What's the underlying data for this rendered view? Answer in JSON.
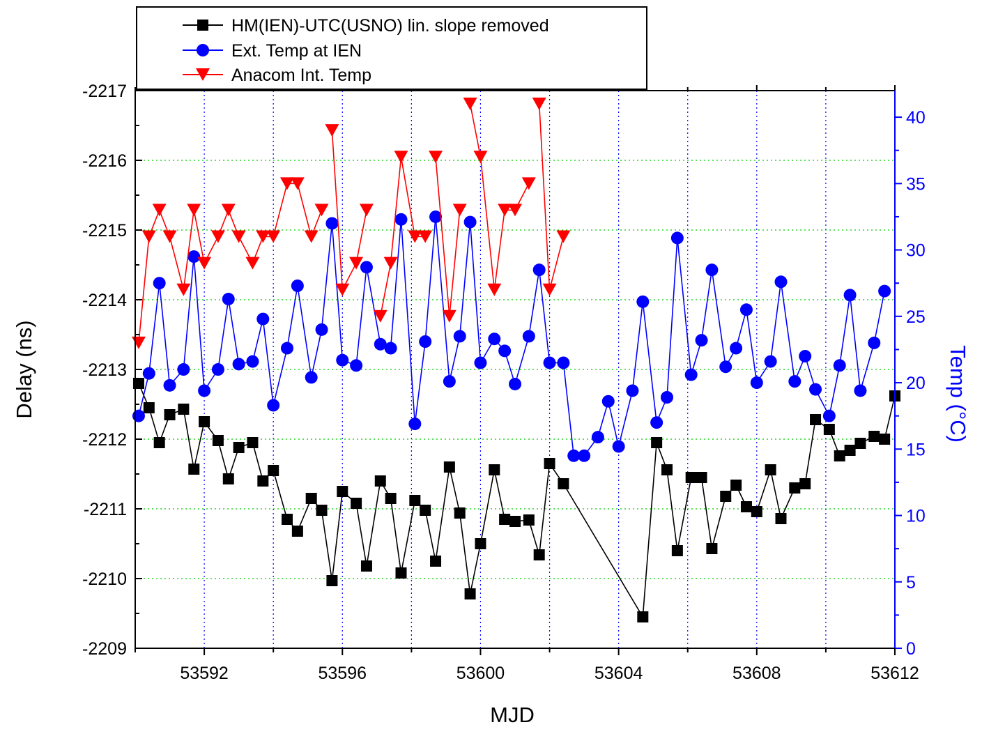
{
  "chart_data": {
    "type": "line",
    "xlabel": "MJD",
    "ylabel": "Delay (ns)",
    "y2label": "Temp (°C)",
    "xlim": [
      53590,
      53612
    ],
    "ylim": [
      -2209,
      -2217
    ],
    "y2lim": [
      0,
      42
    ],
    "x_ticks": [
      53592,
      53596,
      53600,
      53604,
      53608,
      53612
    ],
    "y_ticks": [
      -2217,
      -2216,
      -2215,
      -2214,
      -2213,
      -2212,
      -2211,
      -2210,
      -2209
    ],
    "y2_ticks": [
      0,
      5,
      10,
      15,
      20,
      25,
      30,
      35,
      40
    ],
    "grid": {
      "vertical_dotted_blue_at": [
        53592,
        53594,
        53596,
        53598,
        53600,
        53602,
        53604,
        53606,
        53608,
        53610
      ],
      "horizontal_dotted_green_at": [
        -2216,
        -2215,
        -2214,
        -2213,
        -2212,
        -2211,
        -2210
      ]
    },
    "legend_position": "top-left",
    "series": [
      {
        "name": "HM(IEN)-UTC(USNO) lin. slope removed",
        "axis": "left",
        "color": "#000000",
        "marker": "square",
        "points": [
          [
            53590.1,
            -2212.8
          ],
          [
            53590.4,
            -2212.45
          ],
          [
            53590.7,
            -2211.95
          ],
          [
            53591.0,
            -2212.35
          ],
          [
            53591.4,
            -2212.43
          ],
          [
            53591.7,
            -2211.57
          ],
          [
            53592.0,
            -2212.25
          ],
          [
            53592.4,
            -2211.98
          ],
          [
            53592.7,
            -2211.43
          ],
          [
            53593.0,
            -2211.88
          ],
          [
            53593.4,
            -2211.95
          ],
          [
            53593.7,
            -2211.4
          ],
          [
            53594.0,
            -2211.55
          ],
          [
            53594.4,
            -2210.85
          ],
          [
            53594.7,
            -2210.68
          ],
          [
            53595.1,
            -2211.15
          ],
          [
            53595.4,
            -2210.98
          ],
          [
            53595.7,
            -2209.97
          ],
          [
            53596.0,
            -2211.25
          ],
          [
            53596.4,
            -2211.08
          ],
          [
            53596.7,
            -2210.18
          ],
          [
            53597.1,
            -2211.4
          ],
          [
            53597.4,
            -2211.15
          ],
          [
            53597.7,
            -2210.08
          ],
          [
            53598.1,
            -2211.12
          ],
          [
            53598.4,
            -2210.98
          ],
          [
            53598.7,
            -2210.25
          ],
          [
            53599.1,
            -2211.6
          ],
          [
            53599.4,
            -2210.94
          ],
          [
            53599.7,
            -2209.78
          ],
          [
            53600.0,
            -2210.5
          ],
          [
            53600.4,
            -2211.56
          ],
          [
            53600.7,
            -2210.85
          ],
          [
            53601.0,
            -2210.82
          ],
          [
            53601.4,
            -2210.84
          ],
          [
            53601.7,
            -2210.34
          ],
          [
            53602.0,
            -2211.65
          ],
          [
            53602.4,
            -2211.36
          ],
          [
            53604.7,
            -2209.45
          ],
          [
            53605.1,
            -2211.95
          ],
          [
            53605.4,
            -2211.56
          ],
          [
            53605.7,
            -2210.4
          ],
          [
            53606.1,
            -2211.45
          ],
          [
            53606.4,
            -2211.45
          ],
          [
            53606.7,
            -2210.43
          ],
          [
            53607.1,
            -2211.18
          ],
          [
            53607.4,
            -2211.34
          ],
          [
            53607.7,
            -2211.03
          ],
          [
            53608.0,
            -2210.96
          ],
          [
            53608.4,
            -2211.56
          ],
          [
            53608.7,
            -2210.86
          ],
          [
            53609.1,
            -2211.3
          ],
          [
            53609.4,
            -2211.36
          ],
          [
            53609.7,
            -2212.28
          ],
          [
            53610.1,
            -2212.14
          ],
          [
            53610.4,
            -2211.76
          ],
          [
            53610.7,
            -2211.84
          ],
          [
            53611.0,
            -2211.94
          ],
          [
            53611.4,
            -2212.04
          ],
          [
            53611.7,
            -2212.0
          ],
          [
            53612.0,
            -2212.62
          ]
        ]
      },
      {
        "name": "Ext. Temp at IEN",
        "axis": "right",
        "color": "#0000ff",
        "marker": "circle",
        "points": [
          [
            53590.1,
            17.5
          ],
          [
            53590.4,
            20.7
          ],
          [
            53590.7,
            27.5
          ],
          [
            53591.0,
            19.8
          ],
          [
            53591.4,
            21.0
          ],
          [
            53591.7,
            29.5
          ],
          [
            53592.0,
            19.4
          ],
          [
            53592.4,
            21.0
          ],
          [
            53592.7,
            26.3
          ],
          [
            53593.0,
            21.4
          ],
          [
            53593.4,
            21.6
          ],
          [
            53593.7,
            24.8
          ],
          [
            53594.0,
            18.3
          ],
          [
            53594.4,
            22.6
          ],
          [
            53594.7,
            27.3
          ],
          [
            53595.1,
            20.4
          ],
          [
            53595.4,
            24.0
          ],
          [
            53595.7,
            32.0
          ],
          [
            53596.0,
            21.7
          ],
          [
            53596.4,
            21.3
          ],
          [
            53596.7,
            28.7
          ],
          [
            53597.1,
            22.9
          ],
          [
            53597.4,
            22.6
          ],
          [
            53597.7,
            32.3
          ],
          [
            53598.1,
            16.9
          ],
          [
            53598.4,
            23.1
          ],
          [
            53598.7,
            32.5
          ],
          [
            53599.1,
            20.1
          ],
          [
            53599.4,
            23.5
          ],
          [
            53599.7,
            32.1
          ],
          [
            53600.0,
            21.5
          ],
          [
            53600.4,
            23.3
          ],
          [
            53600.7,
            22.4
          ],
          [
            53601.0,
            19.9
          ],
          [
            53601.4,
            23.5
          ],
          [
            53601.7,
            28.5
          ],
          [
            53602.0,
            21.5
          ],
          [
            53602.4,
            21.5
          ],
          [
            53602.7,
            14.5
          ],
          [
            53603.0,
            14.5
          ],
          [
            53603.4,
            15.9
          ],
          [
            53603.7,
            18.6
          ],
          [
            53604.0,
            15.2
          ],
          [
            53604.4,
            19.4
          ],
          [
            53604.7,
            26.1
          ],
          [
            53605.1,
            17.0
          ],
          [
            53605.4,
            18.9
          ],
          [
            53605.7,
            30.9
          ],
          [
            53606.1,
            20.6
          ],
          [
            53606.4,
            23.2
          ],
          [
            53606.7,
            28.5
          ],
          [
            53607.1,
            21.2
          ],
          [
            53607.4,
            22.6
          ],
          [
            53607.7,
            25.5
          ],
          [
            53608.0,
            20.0
          ],
          [
            53608.4,
            21.6
          ],
          [
            53608.7,
            27.6
          ],
          [
            53609.1,
            20.1
          ],
          [
            53609.4,
            22.0
          ],
          [
            53609.7,
            19.5
          ],
          [
            53610.1,
            17.5
          ],
          [
            53610.4,
            21.3
          ],
          [
            53610.7,
            26.6
          ],
          [
            53611.0,
            19.4
          ],
          [
            53611.4,
            23.0
          ],
          [
            53611.7,
            26.9
          ]
        ]
      },
      {
        "name": "Anacom Int. Temp",
        "axis": "right",
        "color": "#ff0000",
        "marker": "triangle-down",
        "points": [
          [
            53590.1,
            23
          ],
          [
            53590.4,
            31
          ],
          [
            53590.7,
            33
          ],
          [
            53591.0,
            31
          ],
          [
            53591.4,
            27
          ],
          [
            53591.7,
            33
          ],
          [
            53592.0,
            29
          ],
          [
            53592.4,
            31
          ],
          [
            53592.7,
            33
          ],
          [
            53593.0,
            31
          ],
          [
            53593.4,
            29
          ],
          [
            53593.7,
            31
          ],
          [
            53594.0,
            31
          ],
          [
            53594.4,
            35
          ],
          [
            53594.7,
            35
          ],
          [
            53595.1,
            31
          ],
          [
            53595.4,
            33
          ],
          [
            53595.7,
            39
          ],
          [
            53596.0,
            27
          ],
          [
            53596.4,
            29
          ],
          [
            53596.7,
            33
          ],
          [
            53597.1,
            25
          ],
          [
            53597.4,
            29
          ],
          [
            53597.7,
            37
          ],
          [
            53598.1,
            31
          ],
          [
            53598.4,
            31
          ],
          [
            53598.7,
            37
          ],
          [
            53599.1,
            25
          ],
          [
            53599.4,
            33
          ],
          [
            53599.7,
            41
          ],
          [
            53600.0,
            37
          ],
          [
            53600.4,
            27
          ],
          [
            53600.7,
            33
          ],
          [
            53601.0,
            33
          ],
          [
            53601.4,
            35
          ],
          [
            53601.7,
            41
          ],
          [
            53602.0,
            27
          ],
          [
            53602.4,
            31
          ]
        ],
        "line_breaks_before_index": [
          17,
          21,
          26,
          29,
          35
        ]
      }
    ]
  }
}
